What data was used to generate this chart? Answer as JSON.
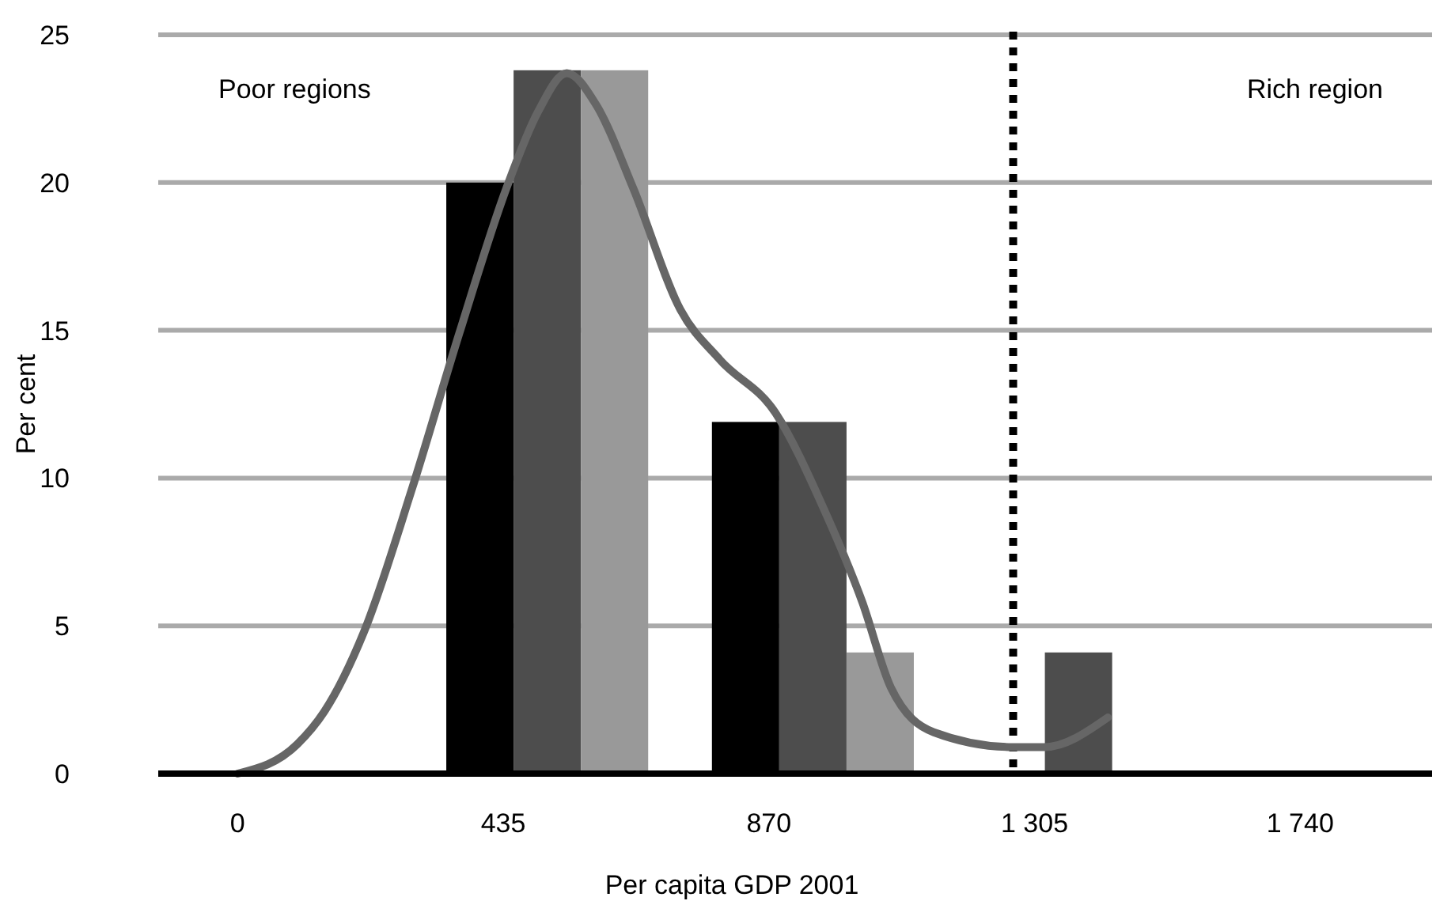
{
  "chart_data": {
    "type": "bar",
    "xlabel": "Per capita GDP 2001",
    "ylabel": "Per cent",
    "x": [
      507,
      942,
      1377
    ],
    "series": [
      {
        "color": "#000000",
        "values": [
          20,
          11.9,
          null
        ]
      },
      {
        "color": "#4d4d4d",
        "values": [
          23.8,
          11.9,
          4.1
        ]
      },
      {
        "color": "#999999",
        "values": [
          23.8,
          4.1,
          null
        ]
      },
      {
        "type": "line",
        "color": "#666666",
        "x": [
          0,
          98,
          142,
          207,
          285,
          363,
          440,
          492,
          539,
          588,
          648,
          725,
          790,
          881,
          959,
          1023,
          1070,
          1140,
          1269,
          1321,
          1425
        ],
        "values": [
          0,
          1.0,
          2.1,
          4.8,
          9.6,
          14.9,
          19.8,
          22.4,
          23.7,
          22.6,
          19.8,
          15.7,
          14.0,
          12.2,
          9.0,
          5.8,
          2.9,
          1.4,
          0.9,
          0.9,
          1.9
        ]
      }
    ],
    "xlim": [
      -130,
      1956
    ],
    "xticks": [
      0,
      435,
      870,
      {
        "value": 1305,
        "label": "1 305"
      },
      {
        "value": 1740,
        "label": "1 740"
      }
    ],
    "ylim": [
      0,
      25
    ],
    "yticks": [
      0,
      5,
      10,
      15,
      20,
      25
    ],
    "grid": "y",
    "ref_lines": [
      {
        "axis": "x",
        "value": 1270,
        "color": "#000000",
        "line_style": "dotted"
      }
    ],
    "annotations": [
      "Poor regions",
      "Rich region"
    ]
  }
}
